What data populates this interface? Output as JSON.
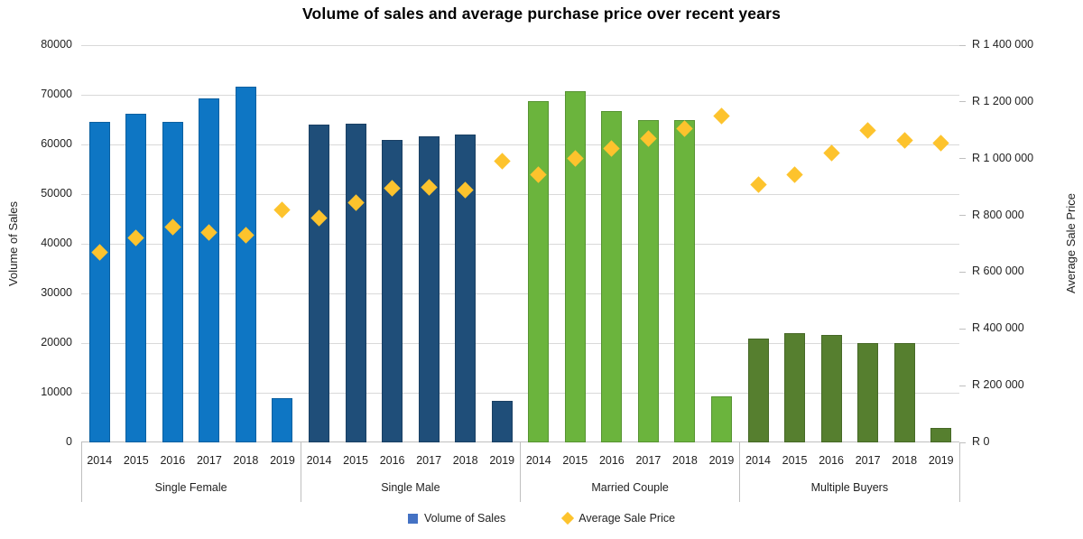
{
  "title": "Volume of sales and average purchase price over recent years",
  "left_axis": {
    "title": "Volume of Sales",
    "min": 0,
    "max": 80000,
    "step": 10000,
    "tick_labels": [
      "0",
      "10000",
      "20000",
      "30000",
      "40000",
      "50000",
      "60000",
      "70000",
      "80000"
    ]
  },
  "right_axis": {
    "title": "Average Sale Price",
    "min": 0,
    "max": 1400000,
    "step": 200000,
    "tick_labels": [
      "R 0",
      "R 200 000",
      "R 400 000",
      "R 600 000",
      "R 800 000",
      "R 1 000 000",
      "R 1 200 000",
      "R 1 400 000"
    ]
  },
  "legend": {
    "items": [
      {
        "label": "Volume of Sales",
        "marker": "square",
        "color": "#4472C4"
      },
      {
        "label": "Average Sale Price",
        "marker": "diamond",
        "color": "#FDC32D"
      }
    ]
  },
  "chart_data": {
    "type": "bar",
    "subtype": "combo bar + scatter (secondary axis)",
    "title": "Volume of sales and average purchase price over recent years",
    "xlabel": "",
    "ylabel": "Volume of Sales",
    "y2label": "Average Sale Price",
    "ylim": [
      0,
      80000
    ],
    "y2lim": [
      0,
      1400000
    ],
    "grid": "horizontal",
    "legend_position": "bottom",
    "x_years": [
      "2014",
      "2015",
      "2016",
      "2017",
      "2018",
      "2019"
    ],
    "marker_color": "#FDC32D",
    "groups": [
      {
        "label": "Single Female",
        "bar_color": "#0E76C4",
        "volume_of_sales": [
          64500,
          66200,
          64500,
          69300,
          71700,
          9000
        ],
        "average_sale_price": [
          670000,
          720000,
          760000,
          740000,
          730000,
          820000
        ]
      },
      {
        "label": "Single Male",
        "bar_color": "#1F4E79",
        "volume_of_sales": [
          64000,
          64200,
          61000,
          61600,
          62000,
          8300
        ],
        "average_sale_price": [
          790000,
          845000,
          895000,
          900000,
          890000,
          990000
        ]
      },
      {
        "label": "Married Couple",
        "bar_color": "#6BB43D",
        "volume_of_sales": [
          68800,
          70700,
          66800,
          65000,
          65000,
          9200
        ],
        "average_sale_price": [
          945000,
          1000000,
          1035000,
          1070000,
          1105000,
          1150000
        ]
      },
      {
        "label": "Multiple Buyers",
        "bar_color": "#567F2F",
        "volume_of_sales": [
          21000,
          22000,
          21700,
          20000,
          20000,
          3000
        ],
        "average_sale_price": [
          910000,
          945000,
          1020000,
          1100000,
          1065000,
          1055000
        ]
      }
    ]
  },
  "colors": {
    "gridline": "#D9D9D9",
    "axis_line": "#BFBFBF",
    "background": "#FFFFFF",
    "text": "#1F1F1F"
  }
}
